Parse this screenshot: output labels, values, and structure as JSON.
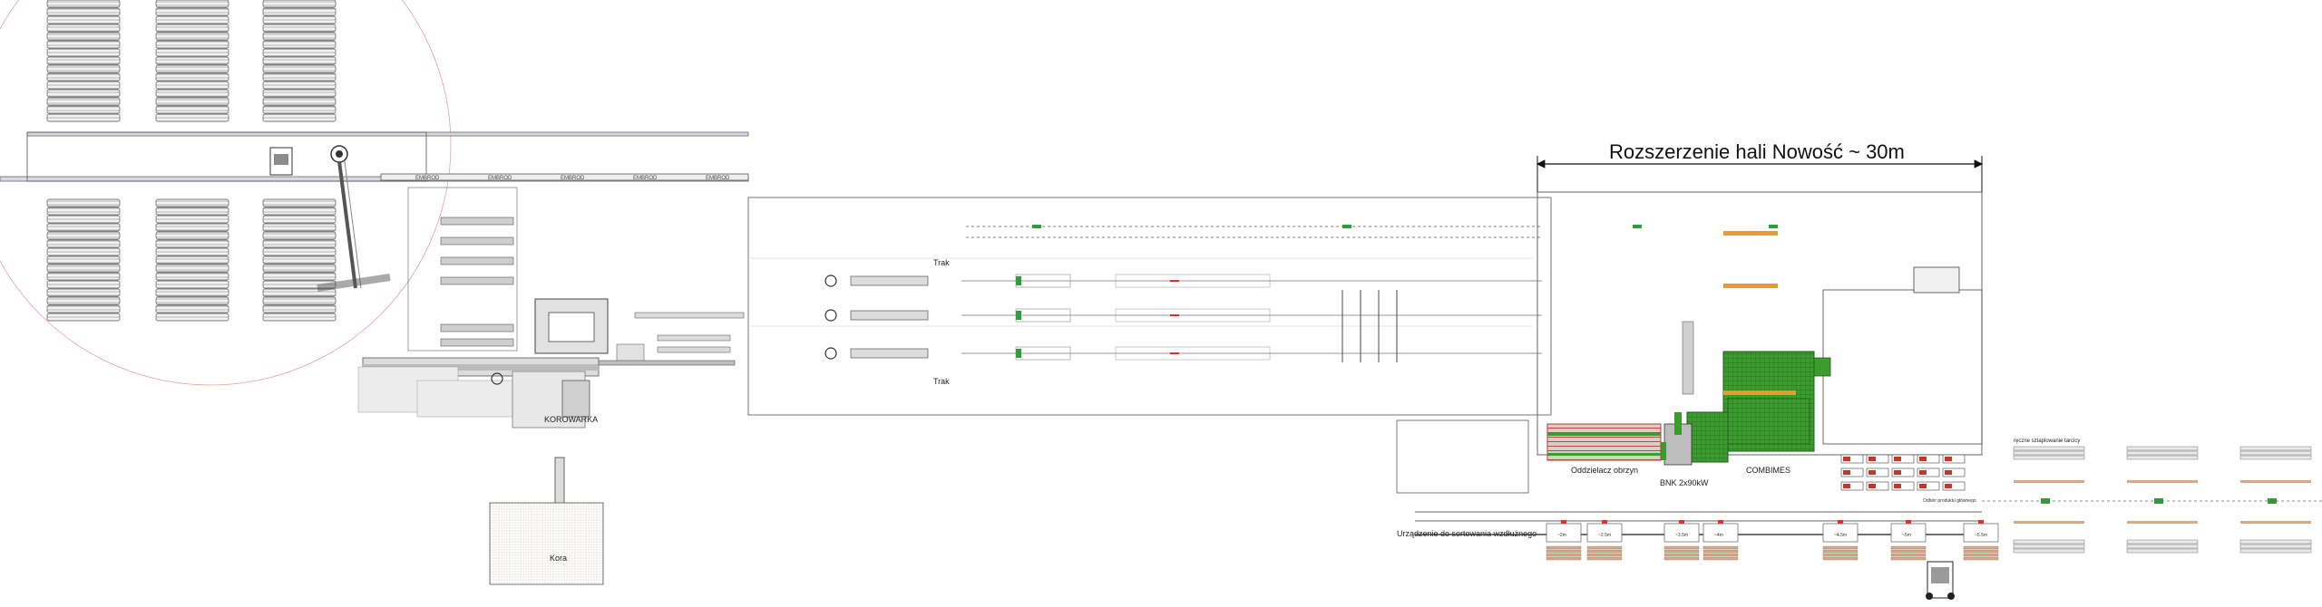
{
  "diagram": {
    "title": "Rozszerzenie hali Nowość ~ 30m",
    "labels": {
      "trak_top": "Trak",
      "trak_bottom": "Trak",
      "korowarka": "KOROWARKA",
      "kora": "Kora",
      "oddzielacz": "Oddzielacz obrzyn",
      "bnk": "BNK 2x90kW",
      "combimes": "COMBIMES",
      "sortowanie": "Urządzenie do sortowania wzdłużnego",
      "reczne": "ręczne sztaplowanie tarcicy",
      "odbior": "Odbiór produktu głównego",
      "brand": "EMBROD"
    },
    "bin_labels": [
      "~2m",
      "~2.5m",
      "~3.5m",
      "~4m",
      "~4.5m",
      "~5m",
      "~5.5m",
      "~6m"
    ],
    "colors": {
      "line": "#555555",
      "light_line": "#9a9a9a",
      "machine_green": "#3c9b2e",
      "machine_red": "#c0392b",
      "arrow_red": "#e0312b",
      "arrow_green": "#2e9d3a",
      "orange": "#e59b2d",
      "zone_circle": "#e5a0a0"
    }
  }
}
